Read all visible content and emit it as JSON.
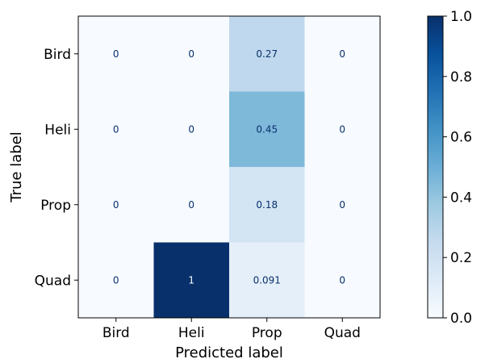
{
  "chart_data": {
    "type": "heatmap",
    "title": "",
    "xlabel": "Predicted label",
    "ylabel": "True label",
    "x_categories": [
      "Bird",
      "Heli",
      "Prop",
      "Quad"
    ],
    "y_categories": [
      "Bird",
      "Heli",
      "Prop",
      "Quad"
    ],
    "values": [
      [
        0,
        0,
        0.27,
        0
      ],
      [
        0,
        0,
        0.45,
        0
      ],
      [
        0,
        0,
        0.18,
        0
      ],
      [
        0,
        1,
        0.091,
        0
      ]
    ],
    "value_labels": [
      [
        "0",
        "0",
        "0.27",
        "0"
      ],
      [
        "0",
        "0",
        "0.45",
        "0"
      ],
      [
        "0",
        "0",
        "0.18",
        "0"
      ],
      [
        "0",
        "1",
        "0.091",
        "0"
      ]
    ],
    "colormap": "Blues",
    "colormap_stops": [
      "#f7fbff",
      "#deebf7",
      "#c6dbef",
      "#9ecae1",
      "#6baed6",
      "#4292c6",
      "#2171b5",
      "#08519c",
      "#08306b"
    ],
    "colorbar": {
      "range": [
        0.0,
        1.0
      ],
      "ticks": [
        "0.0",
        "0.2",
        "0.4",
        "0.6",
        "0.8",
        "1.0"
      ]
    },
    "text_color_dark": "#08306b",
    "text_color_light": "#f7fbff",
    "grid": false
  }
}
